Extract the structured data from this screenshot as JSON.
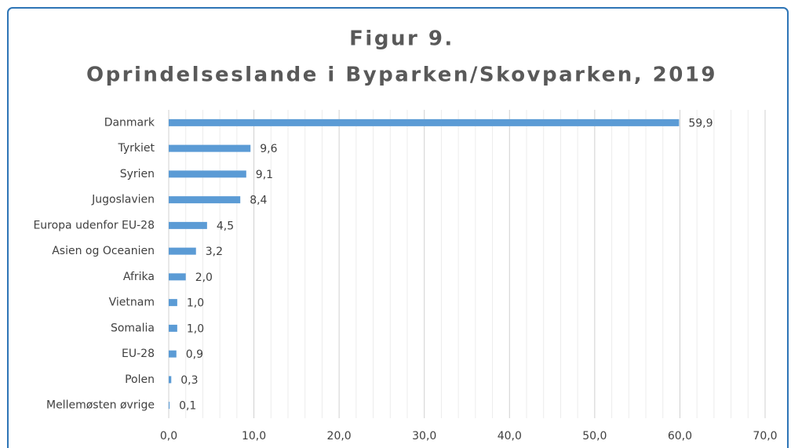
{
  "chart_data": {
    "type": "hbar",
    "title": [
      "Figur 9.",
      "Oprindelseslande i Byparken/Skovparken, 2019"
    ],
    "categories": [
      "Danmark",
      "Tyrkiet",
      "Syrien",
      "Jugoslavien",
      "Europa udenfor EU-28",
      "Asien og Oceanien",
      "Afrika",
      "Vietnam",
      "Somalia",
      "EU-28",
      "Polen",
      "Mellemøsten øvrige"
    ],
    "values": [
      59.9,
      9.6,
      9.1,
      8.4,
      4.5,
      3.2,
      2.0,
      1.0,
      1.0,
      0.9,
      0.3,
      0.1
    ],
    "value_labels": [
      "59,9",
      "9,6",
      "9,1",
      "8,4",
      "4,5",
      "3,2",
      "2,0",
      "1,0",
      "1,0",
      "0,9",
      "0,3",
      "0,1"
    ],
    "color": "#5b9bd5",
    "xlim": [
      0,
      70
    ],
    "xticks": [
      {
        "value": 0,
        "label": "0,0"
      },
      {
        "value": 10,
        "label": "10,0"
      },
      {
        "value": 20,
        "label": "20,0"
      },
      {
        "value": 30,
        "label": "30,0"
      },
      {
        "value": 40,
        "label": "40,0"
      },
      {
        "value": 50,
        "label": "50,0"
      },
      {
        "value": 60,
        "label": "60,0"
      },
      {
        "value": 70,
        "label": "70,0"
      }
    ],
    "xminorticks": [
      2,
      4,
      6,
      8,
      12,
      14,
      16,
      18,
      22,
      24,
      26,
      28,
      32,
      34,
      36,
      38,
      42,
      44,
      46,
      48,
      52,
      54,
      56,
      58,
      62,
      64,
      66,
      68
    ],
    "grid": true
  }
}
